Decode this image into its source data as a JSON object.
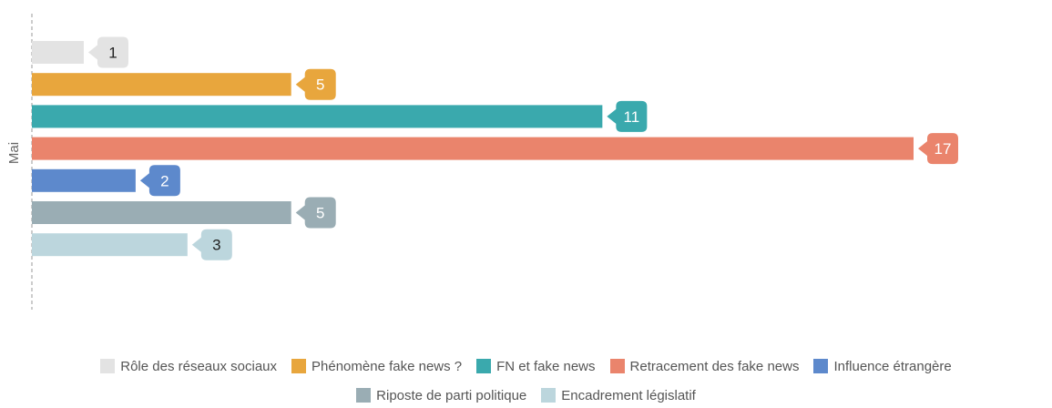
{
  "chart_data": {
    "type": "bar",
    "orientation": "horizontal",
    "categories": [
      "Mai"
    ],
    "ylabel": "Mai",
    "xlim": [
      0,
      17
    ],
    "grid": false,
    "legend_position": "bottom-center",
    "series": [
      {
        "name": "Rôle des réseaux sociaux",
        "values": [
          1
        ],
        "color": "#e3e3e3",
        "label_color": "#222222"
      },
      {
        "name": "Phénomène fake news ?",
        "values": [
          5
        ],
        "color": "#e8a63d",
        "label_color": "#ffffff"
      },
      {
        "name": "FN et fake news",
        "values": [
          11
        ],
        "color": "#3aa9ad",
        "label_color": "#ffffff"
      },
      {
        "name": "Retracement des fake news",
        "values": [
          17
        ],
        "color": "#ea846c",
        "label_color": "#ffffff"
      },
      {
        "name": "Influence étrangère",
        "values": [
          2
        ],
        "color": "#5d89cc",
        "label_color": "#ffffff"
      },
      {
        "name": "Riposte de parti politique",
        "values": [
          5
        ],
        "color": "#9aadb4",
        "label_color": "#ffffff"
      },
      {
        "name": "Encadrement législatif",
        "values": [
          3
        ],
        "color": "#bcd6dd",
        "label_color": "#222222"
      }
    ]
  }
}
